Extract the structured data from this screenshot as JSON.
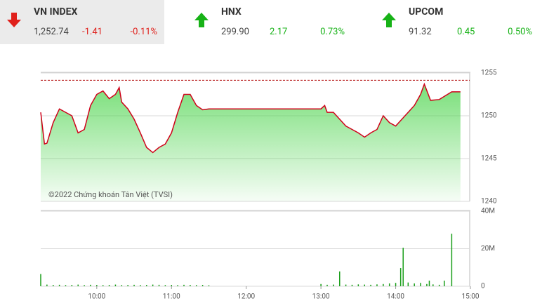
{
  "indices": [
    {
      "name": "VN INDEX",
      "value": "1,252.74",
      "change": "-1.41",
      "percent": "-0.11%",
      "direction": "down"
    },
    {
      "name": "HNX",
      "value": "299.90",
      "change": "2.17",
      "percent": "0.73%",
      "direction": "up"
    },
    {
      "name": "UPCOM",
      "value": "91.32",
      "change": "0.45",
      "percent": "0.50%",
      "direction": "up"
    }
  ],
  "chart_data": [
    {
      "type": "line",
      "watermark": "©2022 Chứng khoán Tân Việt (TVSI)",
      "x": [
        555,
        558,
        560,
        565,
        570,
        575,
        580,
        585,
        590,
        595,
        600,
        605,
        610,
        615,
        618,
        620,
        625,
        630,
        635,
        640,
        645,
        650,
        655,
        660,
        665,
        670,
        675,
        680,
        685,
        690,
        780,
        783,
        785,
        790,
        795,
        800,
        805,
        810,
        815,
        820,
        825,
        830,
        835,
        840,
        845,
        850,
        855,
        860,
        863,
        868,
        875,
        885,
        892
      ],
      "values": [
        1250.4,
        1246.7,
        1246.8,
        1249.2,
        1250.8,
        1250.4,
        1250.0,
        1248.0,
        1248.4,
        1251.2,
        1252.5,
        1252.9,
        1252.0,
        1252.5,
        1253.3,
        1251.6,
        1250.8,
        1249.6,
        1248.0,
        1246.3,
        1245.7,
        1246.3,
        1246.7,
        1248.0,
        1250.4,
        1252.5,
        1252.5,
        1251.2,
        1250.7,
        1250.8,
        1250.8,
        1251.2,
        1250.4,
        1250.4,
        1249.6,
        1248.8,
        1248.4,
        1248.0,
        1247.5,
        1248.0,
        1248.4,
        1250.0,
        1249.2,
        1248.8,
        1249.6,
        1250.4,
        1251.2,
        1252.5,
        1253.7,
        1251.8,
        1251.9,
        1252.8,
        1252.8
      ],
      "color": "#d0021b",
      "area_color": "#4cd44c",
      "reference": 1254.15,
      "reference_color": "#b00000",
      "xlim": [
        555,
        900
      ],
      "ylim": [
        1240,
        1255
      ],
      "yticks": [
        1240,
        1245,
        1250,
        1255
      ],
      "grid": true
    },
    {
      "type": "bar",
      "x": [
        555,
        560,
        565,
        570,
        575,
        580,
        585,
        590,
        595,
        600,
        605,
        610,
        615,
        620,
        625,
        630,
        635,
        640,
        645,
        650,
        655,
        660,
        665,
        670,
        675,
        680,
        685,
        690,
        780,
        785,
        790,
        795,
        800,
        805,
        810,
        815,
        820,
        825,
        830,
        835,
        840,
        844,
        846,
        850,
        855,
        860,
        865,
        867,
        870,
        875,
        879,
        885
      ],
      "values": [
        6500000,
        900000,
        700000,
        800000,
        600000,
        700000,
        900000,
        600000,
        800000,
        700000,
        600000,
        700000,
        900000,
        600000,
        700000,
        800000,
        600000,
        700000,
        900000,
        800000,
        600000,
        700000,
        600000,
        800000,
        700000,
        600000,
        700000,
        500000,
        1200000,
        800000,
        900000,
        7900000,
        900000,
        800000,
        1000000,
        900000,
        800000,
        1000000,
        1200000,
        1500000,
        1800000,
        9700000,
        20500000,
        2000000,
        1500000,
        1800000,
        1200000,
        3000000,
        1000000,
        800000,
        3000000,
        28000000
      ],
      "color": "#1a9e1a",
      "xlim": [
        555,
        900
      ],
      "xticks": [
        {
          "value": 600,
          "label": "10:00"
        },
        {
          "value": 660,
          "label": "11:00"
        },
        {
          "value": 720,
          "label": "12:00"
        },
        {
          "value": 780,
          "label": "13:00"
        },
        {
          "value": 840,
          "label": "14:00"
        },
        {
          "value": 900,
          "label": "15:00"
        }
      ],
      "ylim": [
        0,
        40000000
      ],
      "yticks": [
        0,
        {
          "value": 20000000,
          "label": "20M"
        },
        {
          "value": 40000000,
          "label": "40M"
        }
      ],
      "grid": true
    }
  ]
}
